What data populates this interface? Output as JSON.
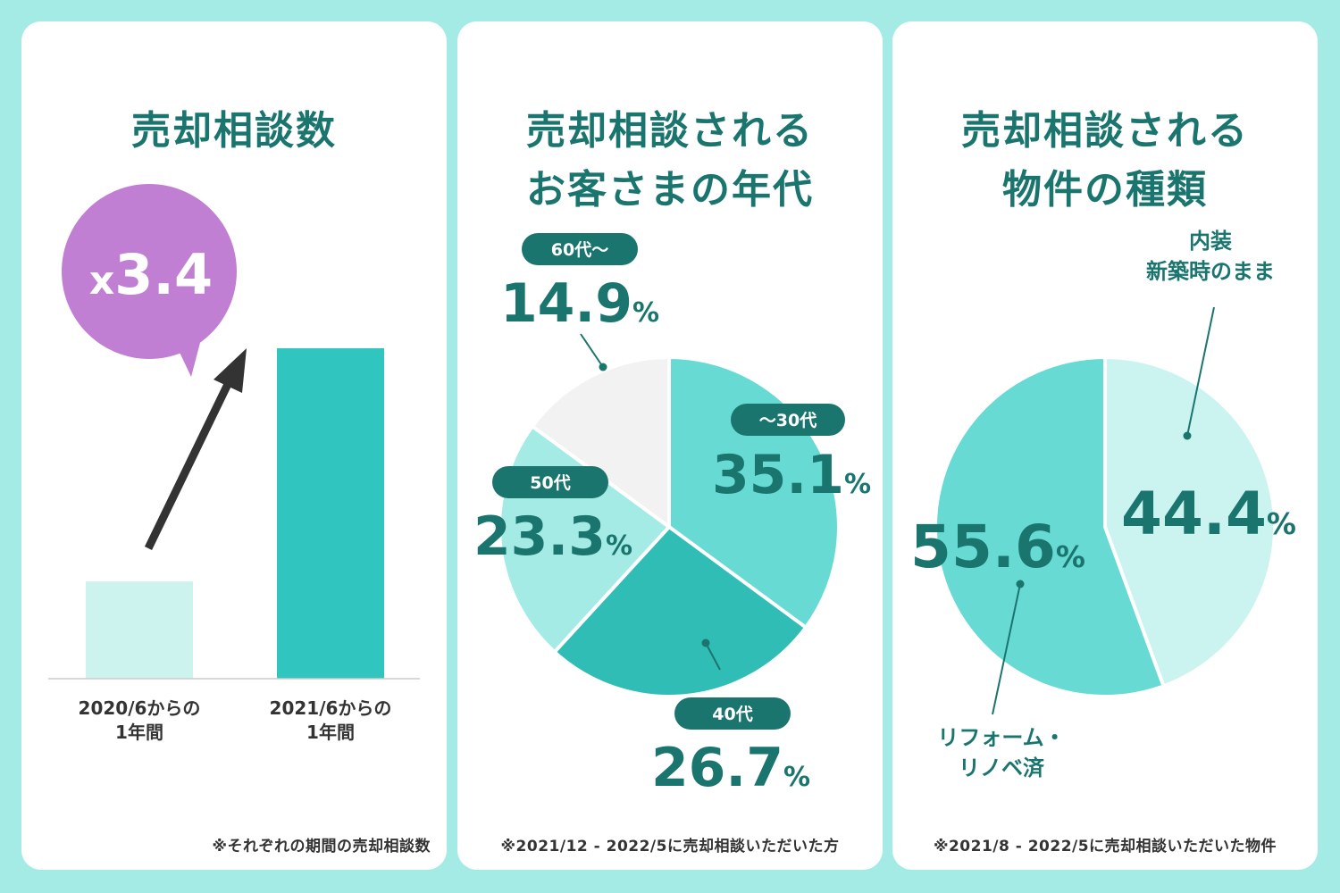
{
  "colors": {
    "background": "#a4ebe6",
    "card": "#ffffff",
    "title_teal": "#1b756f",
    "pill": "#1b756f",
    "bar_2020": "#cdf3ef",
    "bar_2021": "#30c5bf",
    "bubble": "#c17fd4",
    "arrow": "#333333",
    "slice_30": "#66dad3",
    "slice_40": "#30bdb6",
    "slice_50": "#a5ebe5",
    "slice_60": "#f2f2f2",
    "slice_reform": "#66dad3",
    "slice_original": "#cbf4f0"
  },
  "panel1": {
    "title": "売却相談数",
    "multiplier": "x3.4",
    "footnote": "※それぞれの期間の売却相談数"
  },
  "panel2": {
    "title_line1": "売却相談される",
    "title_line2": "お客さまの年代",
    "footnote": "※2021/12 - 2022/5に売却相談いただいた方"
  },
  "panel3": {
    "title_line1": "売却相談される",
    "title_line2": "物件の種類",
    "footnote": "※2021/8 - 2022/5に売却相談いただいた物件"
  },
  "chart_data": [
    {
      "type": "bar",
      "categories": [
        "2020/6からの\n1年間",
        "2021/6からの\n1年間"
      ],
      "category_lines": [
        [
          "2020/6からの",
          "1年間"
        ],
        [
          "2021/6からの",
          "1年間"
        ]
      ],
      "values": [
        1,
        3.4
      ],
      "title": "売却相談数",
      "annotation": "x3.4",
      "grid": false
    },
    {
      "type": "pie",
      "title": "売却相談されるお客さまの年代",
      "labels": [
        "〜30代",
        "40代",
        "50代",
        "60代〜"
      ],
      "values": [
        35.1,
        26.7,
        23.3,
        14.9
      ],
      "value_labels": [
        "35.1",
        "26.7",
        "23.3",
        "14.9"
      ],
      "unit": "%"
    },
    {
      "type": "pie",
      "title": "売却相談される物件の種類",
      "labels": [
        "内装\n新築時のまま",
        "リフォーム・\nリノベ済"
      ],
      "label_lines": [
        [
          "内装",
          "新築時のまま"
        ],
        [
          "リフォーム・",
          "リノベ済"
        ]
      ],
      "values": [
        44.4,
        55.6
      ],
      "value_labels": [
        "44.4",
        "55.6"
      ],
      "unit": "%"
    }
  ]
}
